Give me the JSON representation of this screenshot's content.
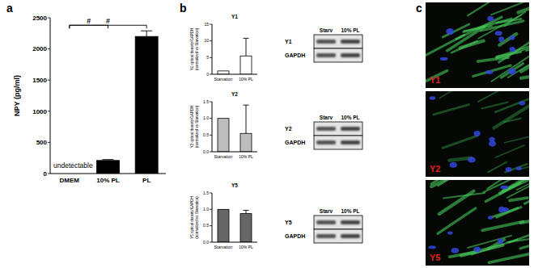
{
  "panel_labels": [
    "a",
    "b",
    "c"
  ],
  "chart_data": [
    {
      "type": "bar",
      "ylabel": "NPY (pg/ml)",
      "categories": [
        "DMEM",
        "10% PL",
        "PL"
      ],
      "values": [
        null,
        210,
        2200
      ],
      "errors": [
        null,
        15,
        90
      ],
      "color": "#000000",
      "ylim": [
        0,
        2500
      ],
      "yticks": [
        0,
        500,
        1000,
        1500,
        2000,
        2500
      ],
      "annotations": [
        {
          "category": 0,
          "text": "undetectable"
        }
      ],
      "significance": [
        {
          "pair": [
            0,
            1
          ],
          "level": 2380,
          "label": "#"
        },
        {
          "pair": [
            0,
            2
          ],
          "level": 2380,
          "label": "#"
        }
      ]
    },
    {
      "type": "bar",
      "title": "Y1",
      "ylabel": [
        "Y1 optical density/GAPDH",
        "(normalized vs Starvation)"
      ],
      "categories": [
        "Starvation",
        "10% PL"
      ],
      "values": [
        1,
        5.5
      ],
      "errors": [
        null,
        5.3
      ],
      "color": "#ffffff",
      "ylim": [
        0,
        15
      ],
      "yticks": [
        0,
        5,
        10,
        15
      ]
    },
    {
      "type": "bar",
      "title": "Y2",
      "ylabel": [
        "Y2 optical density/GAPDH",
        "(normalized vs Starvation)"
      ],
      "categories": [
        "Starvation",
        "10% PL"
      ],
      "values": [
        1,
        0.55
      ],
      "errors": [
        null,
        0.85
      ],
      "color": "#bdbdbd",
      "ylim": [
        0,
        1.5
      ],
      "yticks": [
        {
          "value": 0,
          "label": "0.0"
        },
        0.5,
        {
          "value": 1,
          "label": "1.0"
        },
        1.5
      ]
    },
    {
      "type": "bar",
      "title": "Y5",
      "ylabel": [
        "Y5 optical density/GAPDH",
        "(normalized vs Starvation)"
      ],
      "categories": [
        "Starvation",
        "10% PL"
      ],
      "values": [
        1,
        0.87
      ],
      "errors": [
        null,
        0.1
      ],
      "color": "#666666",
      "ylim": [
        0,
        1.5
      ],
      "yticks": [
        {
          "value": 0,
          "label": "0.0"
        },
        0.5,
        {
          "value": 1,
          "label": "1.0"
        },
        1.5
      ]
    }
  ],
  "blots": [
    {
      "header": [
        "Starv",
        "10% PL"
      ],
      "rows": [
        "Y1",
        "GAPDH"
      ]
    },
    {
      "header": [
        "Starv",
        "10% PL"
      ],
      "rows": [
        "Y2",
        "GAPDH"
      ]
    },
    {
      "header": [
        "Starv",
        "10% PL"
      ],
      "rows": [
        "Y5",
        "GAPDH"
      ]
    }
  ],
  "images": [
    {
      "label": "Y1"
    },
    {
      "label": "Y2"
    },
    {
      "label": "Y5"
    }
  ]
}
